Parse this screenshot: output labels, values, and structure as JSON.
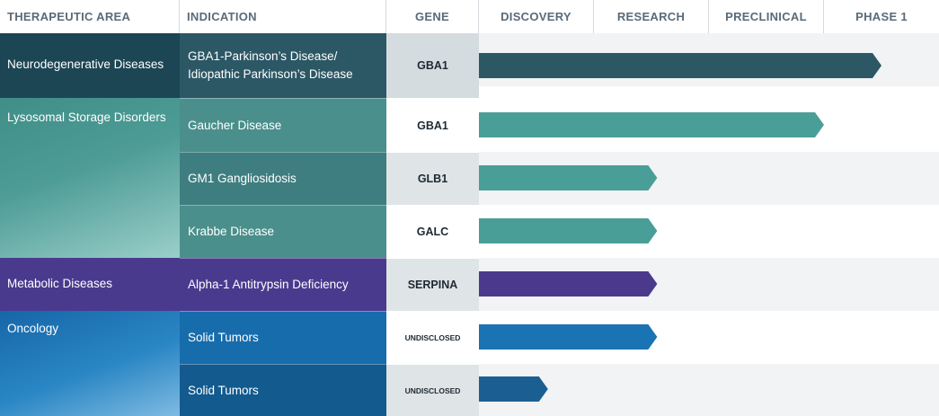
{
  "headers": {
    "area": "THERAPEUTIC AREA",
    "indication": "INDICATION",
    "gene": "GENE",
    "stages": [
      "DISCOVERY",
      "RESEARCH",
      "PRECLINICAL",
      "PHASE 1"
    ]
  },
  "areas": [
    {
      "label": "Neurodegenerative Diseases",
      "color": "#1d4654"
    },
    {
      "label": "Lysosomal Storage Disorders",
      "color": "#3e8a86"
    },
    {
      "label": "Metabolic Diseases",
      "color": "#4a3a8e"
    },
    {
      "label": "Oncology",
      "color": "#1666a8"
    }
  ],
  "chart_data": {
    "type": "bar",
    "orientation": "horizontal",
    "stages": [
      "DISCOVERY",
      "RESEARCH",
      "PRECLINICAL",
      "PHASE 1"
    ],
    "rows": [
      {
        "area": "Neurodegenerative Diseases",
        "indication": "GBA1-Parkinson’s Disease/\nIdiopathic Parkinson’s Disease",
        "gene": "GBA1",
        "progress_stages": 3.5,
        "color": "#2c5765"
      },
      {
        "area": "Lysosomal Storage Disorders",
        "indication": "Gaucher Disease",
        "gene": "GBA1",
        "progress_stages": 3.0,
        "color": "#4a9e98"
      },
      {
        "area": "Lysosomal Storage Disorders",
        "indication": "GM1 Gangliosidosis",
        "gene": "GLB1",
        "progress_stages": 1.55,
        "color": "#4a9e98"
      },
      {
        "area": "Lysosomal Storage Disorders",
        "indication": "Krabbe Disease",
        "gene": "GALC",
        "progress_stages": 1.55,
        "color": "#4a9e98"
      },
      {
        "area": "Metabolic Diseases",
        "indication": "Alpha-1 Antitrypsin Deficiency",
        "gene": "SERPINA",
        "progress_stages": 1.55,
        "color": "#4b3a8c"
      },
      {
        "area": "Oncology",
        "indication": "Solid Tumors",
        "gene": "UNDISCLOSED",
        "progress_stages": 1.55,
        "color": "#1a73b3"
      },
      {
        "area": "Oncology",
        "indication": "Solid Tumors",
        "gene": "UNDISCLOSED",
        "progress_stages": 0.6,
        "color": "#1b5f92"
      }
    ]
  }
}
